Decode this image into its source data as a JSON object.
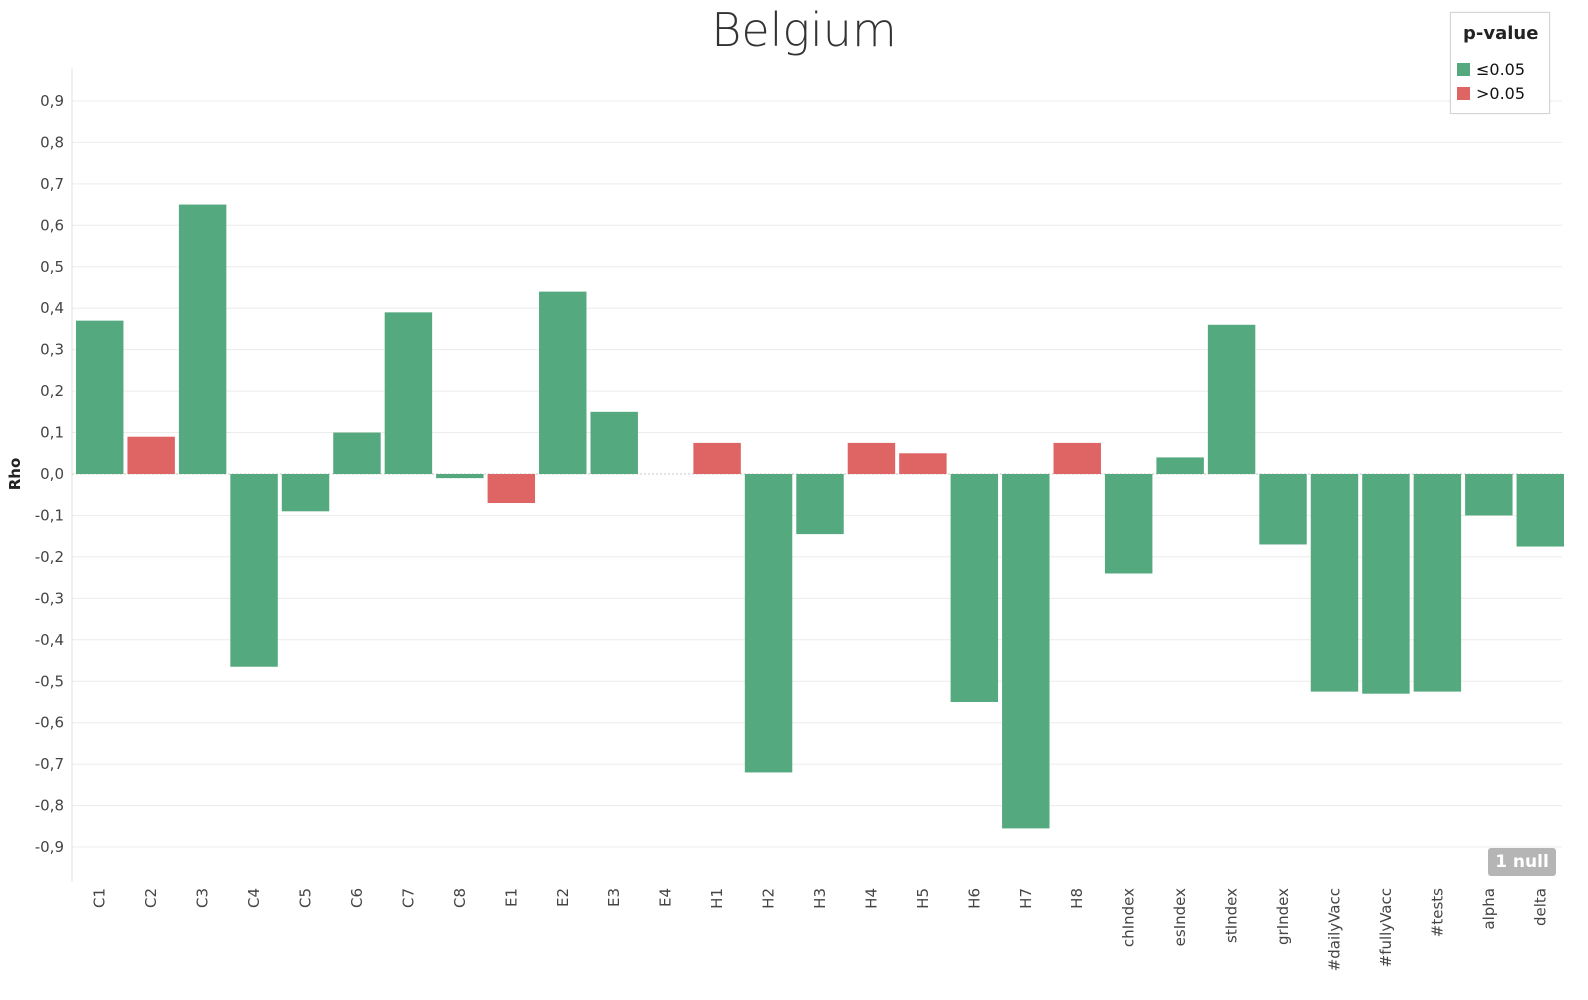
{
  "chart_data": {
    "type": "bar",
    "title": "Belgium",
    "ylabel": "Rho",
    "xlabel": "",
    "ylim": [
      -0.98,
      1.02
    ],
    "yticks": [
      "0,9",
      "0,8",
      "0,7",
      "0,6",
      "0,5",
      "0,4",
      "0,3",
      "0,2",
      "0,1",
      "0,0",
      "-0,1",
      "-0,2",
      "-0,3",
      "-0,4",
      "-0,5",
      "-0,6",
      "-0,7",
      "-0,8",
      "-0,9"
    ],
    "ytick_values": [
      0.9,
      0.8,
      0.7,
      0.6,
      0.5,
      0.4,
      0.3,
      0.2,
      0.1,
      0.0,
      -0.1,
      -0.2,
      -0.3,
      -0.4,
      -0.5,
      -0.6,
      -0.7,
      -0.8,
      -0.9
    ],
    "categories": [
      "C1",
      "C2",
      "C3",
      "C4",
      "C5",
      "C6",
      "C7",
      "C8",
      "E1",
      "E2",
      "E3",
      "E4",
      "H1",
      "H2",
      "H3",
      "H4",
      "H5",
      "H6",
      "H7",
      "H8",
      "chIndex",
      "esIndex",
      "stIndex",
      "grIndex",
      "#dailyVacc",
      "#fullyVacc",
      "#tests",
      "alpha",
      "delta"
    ],
    "values": [
      0.37,
      0.09,
      0.65,
      -0.465,
      -0.09,
      0.1,
      0.39,
      -0.01,
      -0.07,
      0.44,
      0.15,
      null,
      0.075,
      -0.72,
      -0.145,
      0.075,
      0.05,
      -0.55,
      -0.855,
      0.075,
      -0.24,
      0.04,
      0.36,
      -0.17,
      -0.525,
      -0.53,
      -0.525,
      -0.1,
      -0.175
    ],
    "significance": [
      "le",
      "gt",
      "le",
      "le",
      "le",
      "le",
      "le",
      "le",
      "gt",
      "le",
      "le",
      null,
      "gt",
      "le",
      "le",
      "gt",
      "gt",
      "le",
      "le",
      "gt",
      "le",
      "le",
      "le",
      "le",
      "le",
      "le",
      "le",
      "le",
      "le"
    ],
    "legend": {
      "title": "p-value",
      "position": "top-right",
      "items": [
        {
          "key": "le",
          "label": "≤0.05",
          "color": "#55a97f"
        },
        {
          "key": "gt",
          "label": ">0.05",
          "color": "#df6464"
        }
      ]
    },
    "null_badge": "1 null",
    "grid": true
  }
}
